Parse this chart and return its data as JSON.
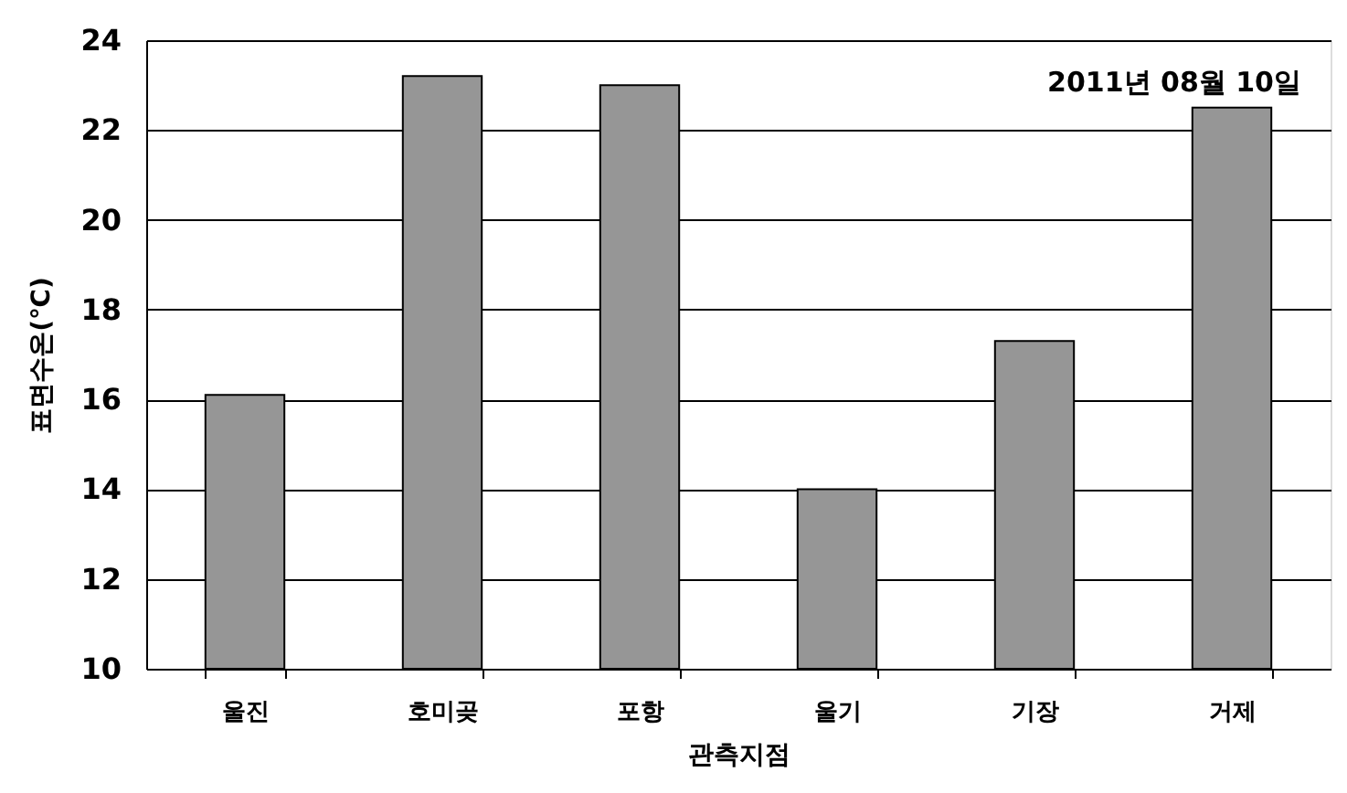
{
  "chart_data": {
    "type": "bar",
    "categories": [
      "울진",
      "호미곶",
      "포항",
      "울기",
      "기장",
      "거제"
    ],
    "values": [
      16.1,
      23.2,
      23.0,
      14.0,
      17.3,
      22.5
    ],
    "color": "#969696",
    "xlabel": "관측지점",
    "ylabel": "표면수온(℃)",
    "ylim": [
      10,
      24
    ],
    "yticks": [
      10,
      12,
      14,
      16,
      18,
      20,
      22,
      24
    ],
    "grid": "y",
    "annotations": [
      "2011년 08월 10일"
    ]
  }
}
